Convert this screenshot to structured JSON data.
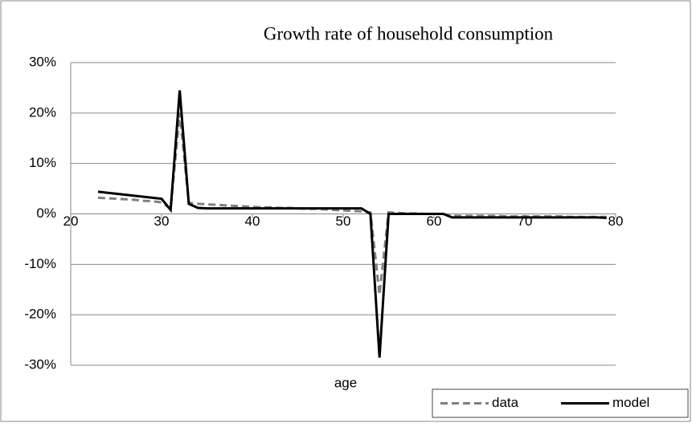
{
  "chart_data": {
    "type": "line",
    "title": "Growth rate of household consumption",
    "xlabel": "age",
    "x": [
      23,
      24,
      25,
      26,
      27,
      28,
      29,
      30,
      31,
      32,
      33,
      34,
      35,
      36,
      37,
      38,
      39,
      40,
      41,
      42,
      43,
      44,
      45,
      46,
      47,
      48,
      49,
      50,
      51,
      52,
      53,
      54,
      55,
      56,
      57,
      58,
      59,
      60,
      61,
      62,
      63,
      64,
      65,
      66,
      67,
      68,
      69,
      70,
      71,
      72,
      73,
      74,
      75,
      76,
      77,
      78,
      79
    ],
    "series": [
      {
        "name": "data",
        "color": "#808080",
        "style": "dashed",
        "values": [
          3.2,
          3.1,
          3.0,
          2.9,
          2.8,
          2.6,
          2.5,
          2.3,
          1.0,
          20.0,
          2.2,
          2.0,
          1.9,
          1.8,
          1.7,
          1.6,
          1.5,
          1.4,
          1.3,
          1.3,
          1.2,
          1.2,
          1.1,
          1.0,
          1.0,
          0.9,
          0.8,
          0.7,
          0.6,
          0.5,
          0.3,
          -16.0,
          0.3,
          0.2,
          0.1,
          0.1,
          0.0,
          0.0,
          0.0,
          -0.4,
          -0.4,
          -0.4,
          -0.4,
          -0.4,
          -0.4,
          -0.5,
          -0.5,
          -0.5,
          -0.5,
          -0.5,
          -0.5,
          -0.5,
          -0.6,
          -0.6,
          -0.6,
          -0.6,
          -0.6
        ]
      },
      {
        "name": "model",
        "color": "#000000",
        "style": "solid",
        "values": [
          4.4,
          4.2,
          4.0,
          3.8,
          3.6,
          3.4,
          3.2,
          3.0,
          0.8,
          24.5,
          2.0,
          1.2,
          1.1,
          1.1,
          1.1,
          1.1,
          1.1,
          1.1,
          1.1,
          1.1,
          1.1,
          1.1,
          1.1,
          1.1,
          1.1,
          1.1,
          1.1,
          1.1,
          1.1,
          1.1,
          0.0,
          -28.5,
          0.0,
          0.0,
          0.0,
          0.0,
          0.0,
          0.0,
          0.0,
          -0.7,
          -0.7,
          -0.7,
          -0.7,
          -0.7,
          -0.7,
          -0.7,
          -0.7,
          -0.7,
          -0.7,
          -0.7,
          -0.7,
          -0.7,
          -0.7,
          -0.7,
          -0.7,
          -0.7,
          -0.8
        ]
      }
    ],
    "xlim": [
      20,
      80
    ],
    "xticks": [
      20,
      30,
      40,
      50,
      60,
      70,
      80
    ],
    "ylim": [
      -30,
      30
    ],
    "yticks": [
      {
        "value": -30,
        "label": "-30%"
      },
      {
        "value": -20,
        "label": "-20%"
      },
      {
        "value": -10,
        "label": "-10%"
      },
      {
        "value": 0,
        "label": "0%"
      },
      {
        "value": 10,
        "label": "10%"
      },
      {
        "value": 20,
        "label": "20%"
      },
      {
        "value": 30,
        "label": "30%"
      }
    ],
    "grid": true,
    "legend": "lower right"
  }
}
